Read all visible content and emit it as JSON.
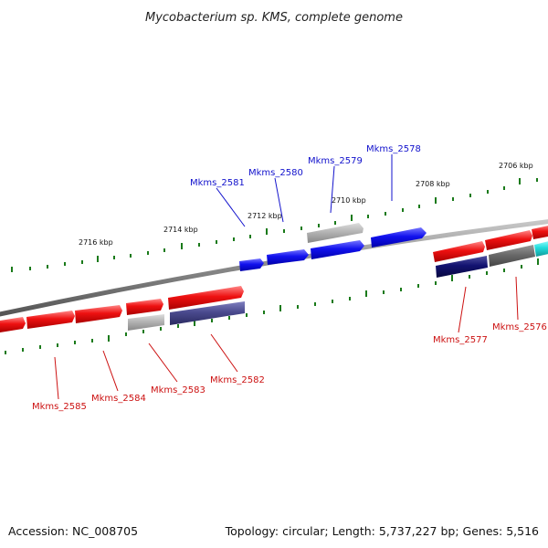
{
  "title": "Mycobacterium sp. KMS, complete genome",
  "footer": {
    "accession": "Accession: NC_008705",
    "summary": "Topology: circular; Length: 5,737,227 bp; Genes: 5,516"
  },
  "colors": {
    "red": "#ee1111",
    "blue": "#1111ee",
    "gray": "#aaaaaa",
    "darkgray": "#6a6a6a",
    "navy": "#121270",
    "slate": "#4a4a8e",
    "cyan": "#22dddd",
    "tick": "#1a7a1a",
    "backbone": "#888888",
    "label_forward": "#1111cc",
    "label_reverse": "#cc1111"
  },
  "scale_labels": [
    "2716 kbp",
    "2714 kbp",
    "2712 kbp",
    "2710 kbp",
    "2708 kbp",
    "2706 kbp"
  ],
  "gene_labels": [
    "Mkms_2578",
    "Mkms_2579",
    "Mkms_2580",
    "Mkms_2581",
    "Mkms_2577",
    "Mkms_2576",
    "Mkms_2582",
    "Mkms_2583",
    "Mkms_2584",
    "Mkms_2585"
  ]
}
